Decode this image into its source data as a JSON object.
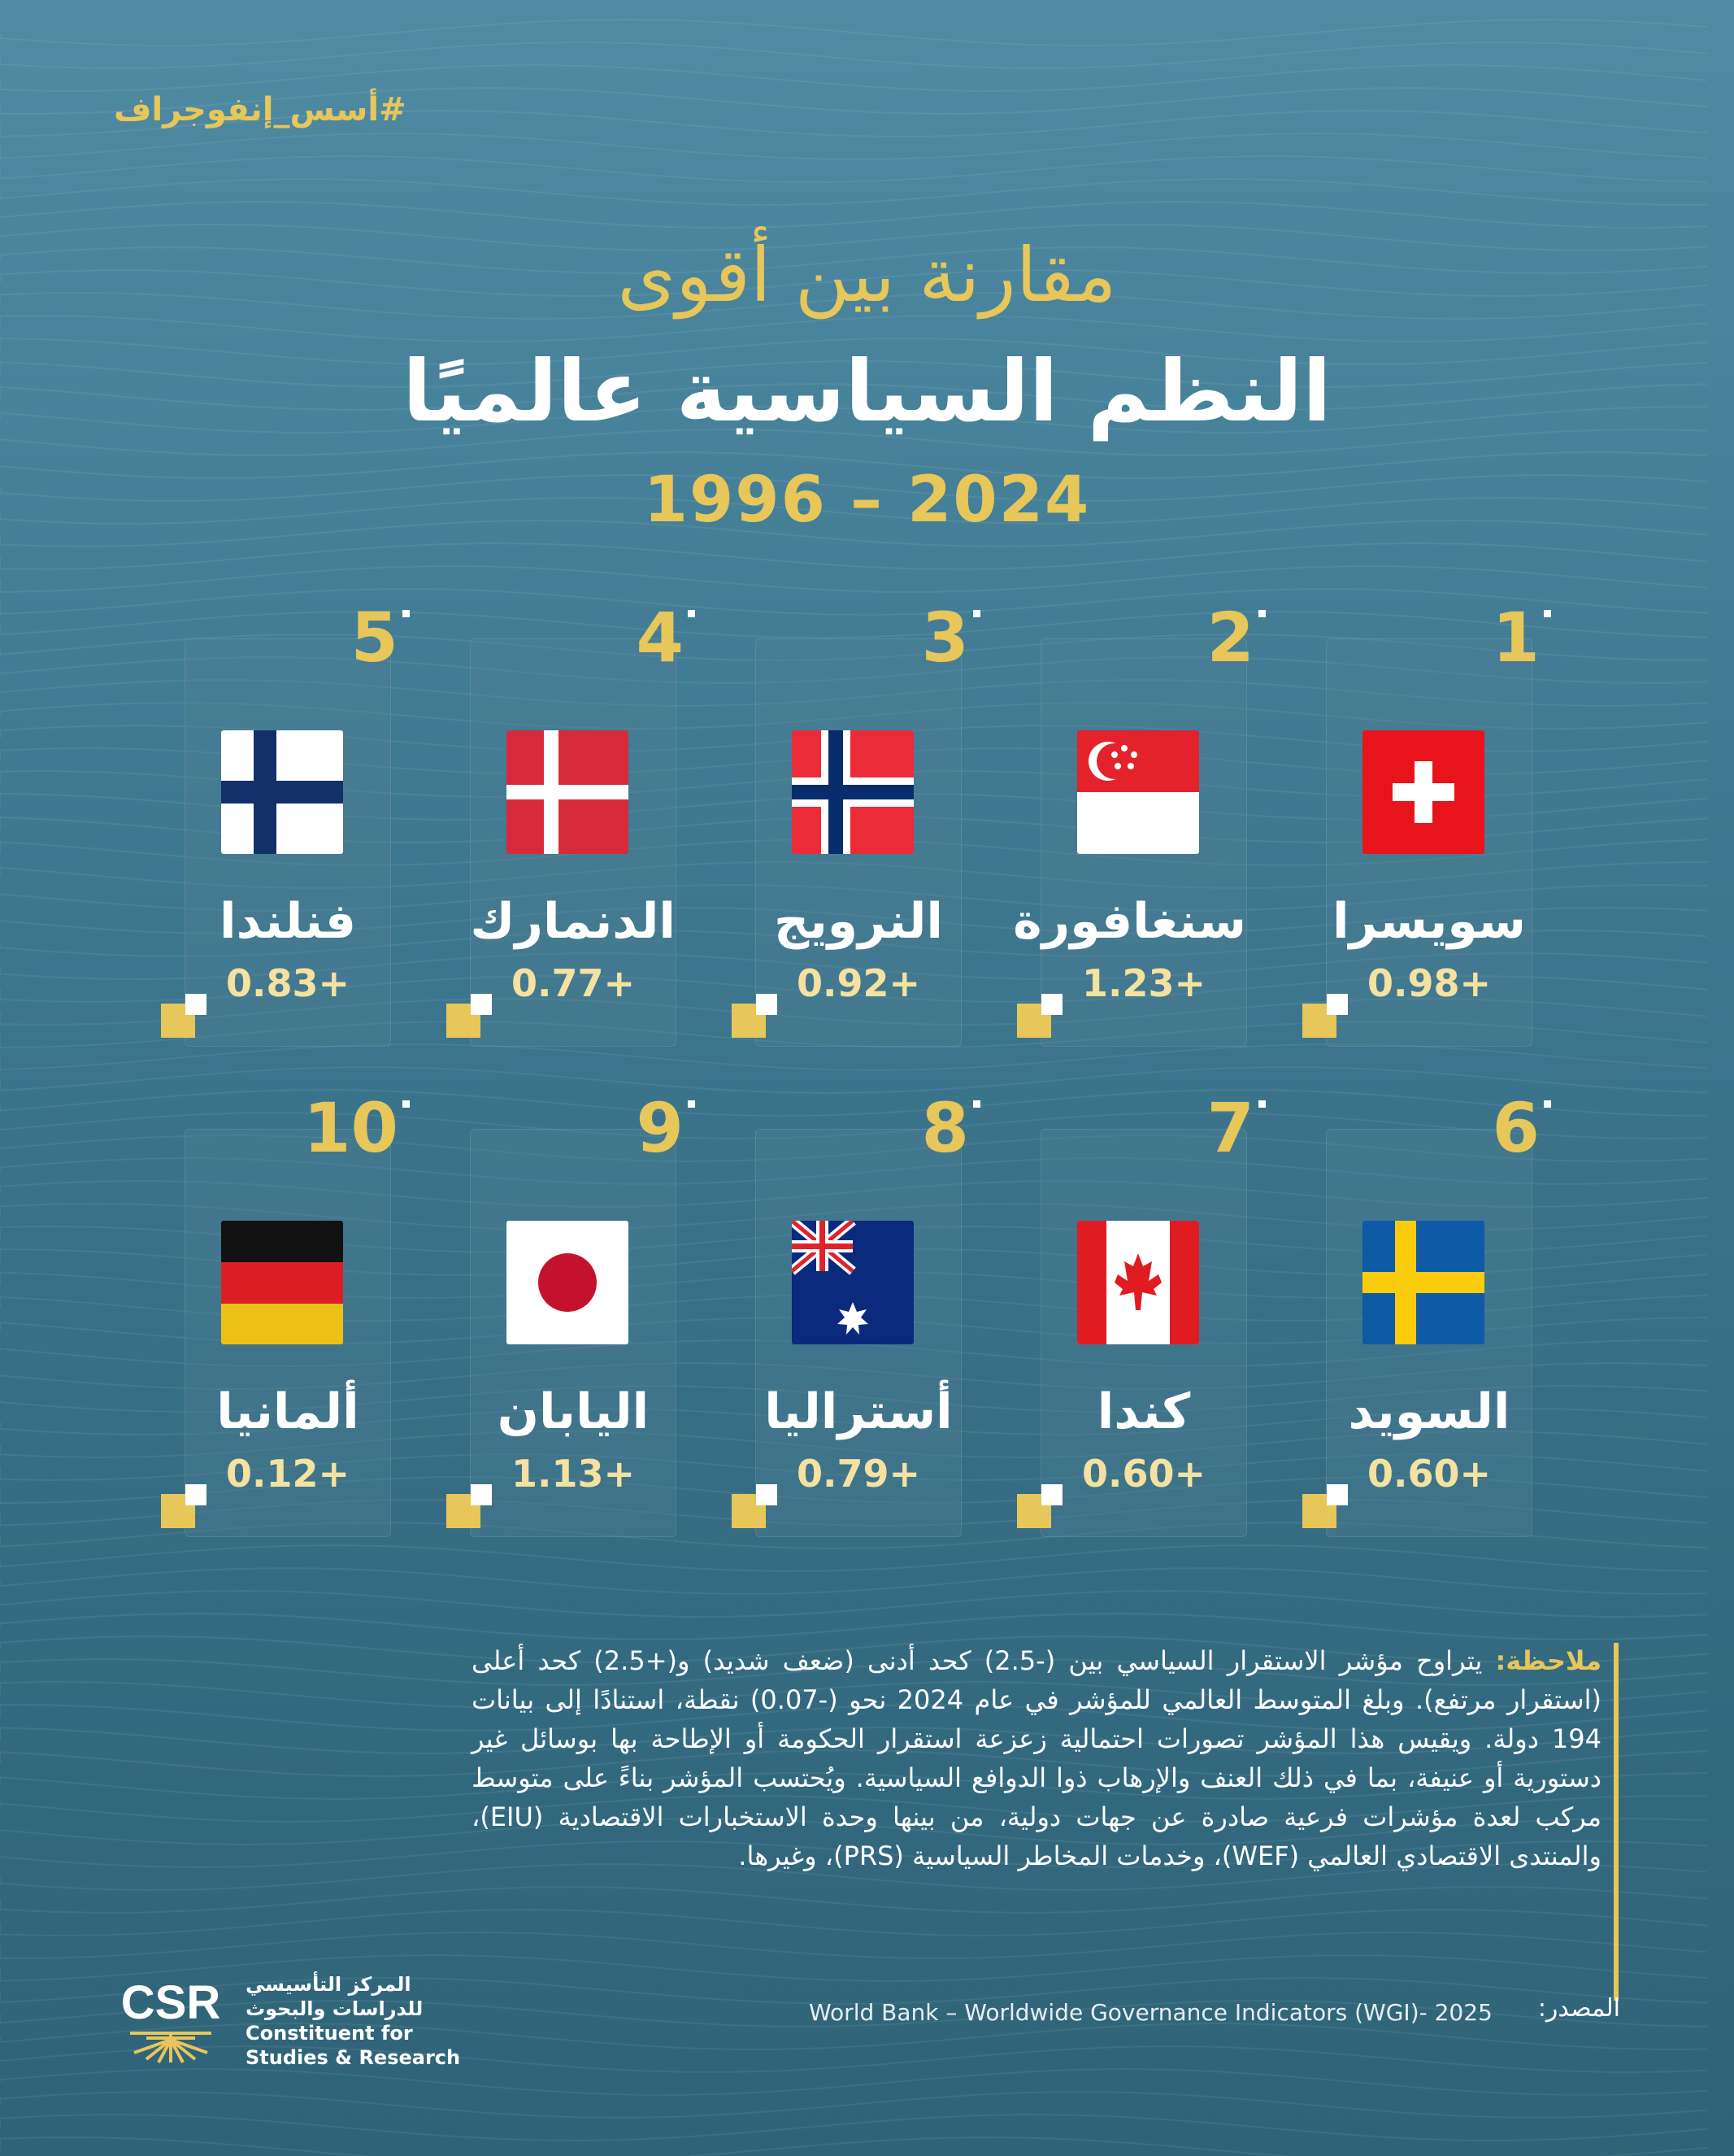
{
  "hashtag": "#أسس_إنفوجراف",
  "title": {
    "line1": "مقارنة بين أقوى",
    "line2": "النظم السياسية عالميًا",
    "line3": "1996 – 2024"
  },
  "countries": [
    {
      "rank": "1",
      "name": "سويسرا",
      "score": "0.98+",
      "flag": "switzerland-flag"
    },
    {
      "rank": "2",
      "name": "سنغافورة",
      "score": "1.23+",
      "flag": "singapore-flag"
    },
    {
      "rank": "3",
      "name": "النرويج",
      "score": "0.92+",
      "flag": "norway-flag"
    },
    {
      "rank": "4",
      "name": "الدنمارك",
      "score": "0.77+",
      "flag": "denmark-flag"
    },
    {
      "rank": "5",
      "name": "فنلندا",
      "score": "0.83+",
      "flag": "finland-flag"
    },
    {
      "rank": "6",
      "name": "السويد",
      "score": "0.60+",
      "flag": "sweden-flag"
    },
    {
      "rank": "7",
      "name": "كندا",
      "score": "0.60+",
      "flag": "canada-flag"
    },
    {
      "rank": "8",
      "name": "أستراليا",
      "score": "0.79+",
      "flag": "australia-flag"
    },
    {
      "rank": "9",
      "name": "اليابان",
      "score": "1.13+",
      "flag": "japan-flag"
    },
    {
      "rank": "10",
      "name": "ألمانيا",
      "score": "0.12+",
      "flag": "germany-flag"
    }
  ],
  "note": {
    "label": "ملاحظة:",
    "text": "يتراوح مؤشر الاستقرار السياسي بين (-2.5) كحد أدنى (ضعف شديد) و(+2.5) كحد أعلى (استقرار مرتفع). وبلغ المتوسط العالمي للمؤشر في عام 2024 نحو (-0.07) نقطة، استنادًا إلى بيانات 194 دولة. ويقيس هذا المؤشر تصورات احتمالية زعزعة استقرار الحكومة أو الإطاحة بها بوسائل غير دستورية أو عنيفة، بما في ذلك العنف والإرهاب ذوا الدوافع السياسية. ويُحتسب المؤشر بناءً على متوسط مركب لعدة مؤشرات فرعية صادرة عن جهات دولية، من بينها وحدة الاستخبارات الاقتصادية (EIU)، والمنتدى الاقتصادي العالمي (WEF)، وخدمات المخاطر السياسية (PRS)، وغيرها."
  },
  "source": {
    "label": "المصدر:",
    "value": "World Bank – Worldwide Governance Indicators (WGI)- 2025"
  },
  "org": {
    "logo_text": "CSR",
    "name_ar_1": "المركز التأسيسي",
    "name_ar_2": "للدراسات والبحوث",
    "name_en_1": "Constituent for",
    "name_en_2": "Studies & Research"
  },
  "colors": {
    "accent": "#e7c65a",
    "background": "#3f7a92"
  }
}
